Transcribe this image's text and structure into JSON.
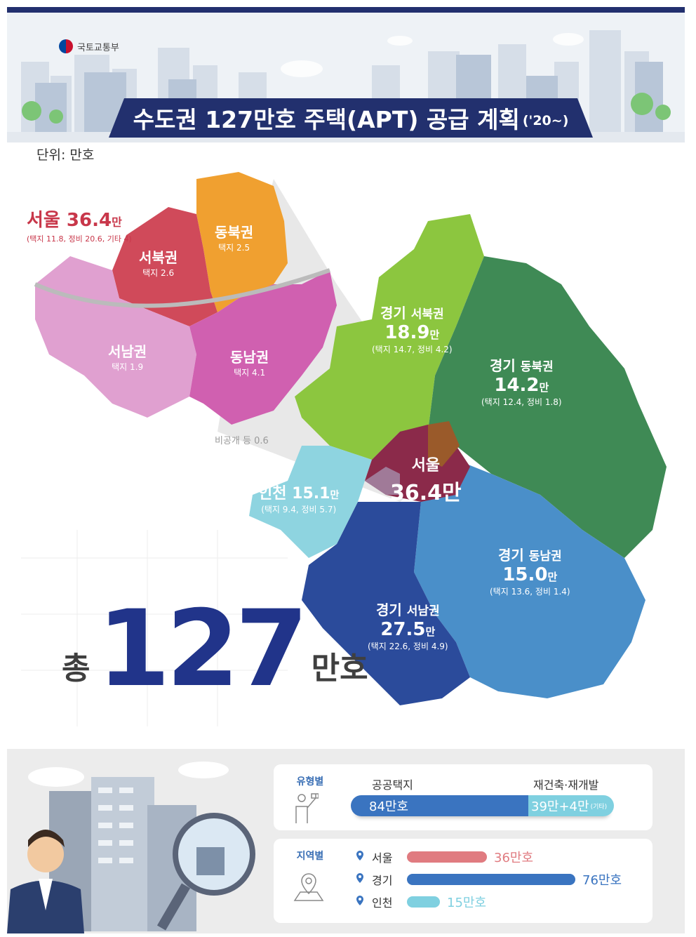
{
  "header": {
    "ministry": "국토교통부",
    "title": "수도권 127만호 주택(APT) 공급 계획",
    "title_suffix": "('20~)"
  },
  "unit": "단위: 만호",
  "seoul_detail": {
    "title_name": "서울",
    "title_value": "36.4",
    "title_unit": "만",
    "breakdown": "(택지 11.8, 정비 20.6, 기타 4)",
    "districts": [
      {
        "name": "동북권",
        "detail": "택지 2.5"
      },
      {
        "name": "서북권",
        "detail": "택지 2.6"
      },
      {
        "name": "서남권",
        "detail": "택지 1.9"
      },
      {
        "name": "동남권",
        "detail": "택지 4.1"
      }
    ],
    "other": "비공개 등 0.6"
  },
  "regions": {
    "gyeonggi_nw": {
      "prefix": "경기",
      "name": "서북권",
      "value": "18.9",
      "unit": "만",
      "detail": "(택지 14.7, 정비 4.2)"
    },
    "gyeonggi_ne": {
      "prefix": "경기",
      "name": "동북권",
      "value": "14.2",
      "unit": "만",
      "detail": "(택지 12.4, 정비 1.8)"
    },
    "seoul": {
      "name": "서울",
      "value": "36.4만"
    },
    "incheon": {
      "name": "인천",
      "value": "15.1",
      "unit": "만",
      "detail": "(택지 9.4, 정비 5.7)"
    },
    "gyeonggi_se": {
      "prefix": "경기",
      "name": "동남권",
      "value": "15.0",
      "unit": "만",
      "detail": "(택지 13.6, 정비 1.4)"
    },
    "gyeonggi_sw": {
      "prefix": "경기",
      "name": "서남권",
      "value": "27.5",
      "unit": "만",
      "detail": "(택지 22.6, 정비 4.9)"
    }
  },
  "total": {
    "prefix": "총",
    "value": "127",
    "suffix": "만호"
  },
  "by_type": {
    "category": "유형별",
    "public_label": "공공택지",
    "recon_label": "재건축·재개발",
    "public_value": "84만호",
    "recon_value": "39만+4만",
    "recon_note": "(기타)"
  },
  "by_region": {
    "category": "지역별",
    "rows": [
      {
        "name": "서울",
        "value": "36만호",
        "amount": 36,
        "color": "#e07b80"
      },
      {
        "name": "경기",
        "value": "76만호",
        "amount": 76,
        "color": "#3a74c0"
      },
      {
        "name": "인천",
        "value": "15만호",
        "amount": 15,
        "color": "#7fd0e0"
      }
    ]
  },
  "colors": {
    "navy": "#21348a",
    "seoul_red": "#c8374a",
    "gyeonggi_nw": "#8cc63f",
    "gyeonggi_ne": "#3f8a55",
    "gyeonggi_se": "#4a8fc9",
    "gyeonggi_sw": "#2b4b9b",
    "incheon": "#8ed4e0"
  }
}
